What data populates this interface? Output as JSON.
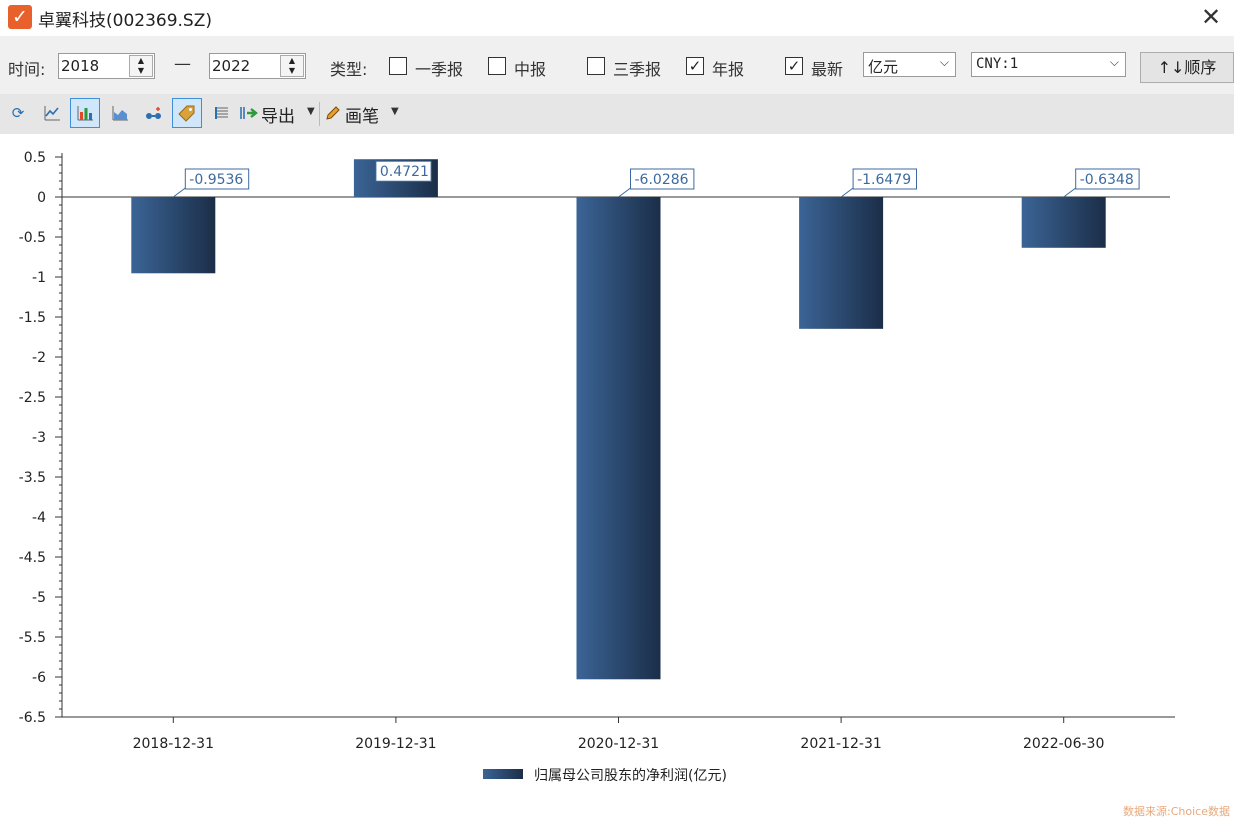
{
  "window": {
    "title": "卓翼科技(002369.SZ)",
    "close_glyph": "✕"
  },
  "filters": {
    "time_label": "时间:",
    "start_year": "2018",
    "dash": "—",
    "end_year": "2022",
    "type_label": "类型:",
    "checkboxes": [
      {
        "label": "一季报",
        "checked": false
      },
      {
        "label": "中报",
        "checked": false
      },
      {
        "label": "三季报",
        "checked": false
      },
      {
        "label": "年报",
        "checked": true
      },
      {
        "label": "最新",
        "checked": true
      }
    ],
    "unit_select": "亿元",
    "currency_select": "CNY:1",
    "sort_button": "↑↓顺序"
  },
  "toolbar": {
    "icons": [
      "refresh-icon",
      "line-chart-icon",
      "bar-chart-icon",
      "area-chart-icon",
      "scatter-icon",
      "tag-icon",
      "list-icon"
    ],
    "export_label": "导出",
    "pen_label": "画笔"
  },
  "chart_data": {
    "type": "bar",
    "categories": [
      "2018-12-31",
      "2019-12-31",
      "2020-12-31",
      "2021-12-31",
      "2022-06-30"
    ],
    "series": [
      {
        "name": "归属母公司股东的净利润(亿元)",
        "values": [
          -0.9536,
          0.4721,
          -6.0286,
          -1.6479,
          -0.6348
        ]
      }
    ],
    "data_labels": [
      "-0.9536",
      "0.4721",
      "-6.0286",
      "-1.6479",
      "-0.6348"
    ],
    "ylim": [
      -6.5,
      0.5
    ],
    "yticks": [
      "0.5",
      "0",
      "-0.5",
      "-1",
      "-1.5",
      "-2",
      "-2.5",
      "-3",
      "-3.5",
      "-4",
      "-4.5",
      "-5",
      "-5.5",
      "-6",
      "-6.5"
    ],
    "colors": {
      "bar_light": "#3b6496",
      "bar_dark": "#1b2e48",
      "label_border": "#3c6aa0",
      "label_text": "#3c6aa0"
    },
    "legend_position": "bottom-center"
  },
  "footer": {
    "source": "数据来源:Choice数据"
  }
}
